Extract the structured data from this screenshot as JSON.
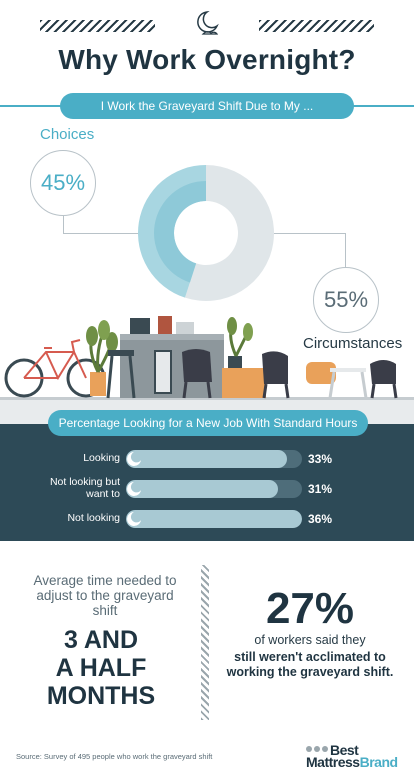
{
  "header": {
    "title": "Why Work Overnight?"
  },
  "reasons": {
    "banner": "I Work the Graveyard Shift Due to My ...",
    "choices_label": "Choices",
    "choices_pct": "45%",
    "circumstances_label": "Circumstances",
    "circumstances_pct": "55%"
  },
  "chart_data": [
    {
      "type": "pie",
      "categories": [
        "Choices",
        "Circumstances"
      ],
      "values": [
        45,
        55
      ],
      "title": "I Work the Graveyard Shift Due to My ..."
    },
    {
      "type": "bar",
      "title": "Percentage Looking for a New Job With Standard Hours",
      "categories": [
        "Looking",
        "Not looking but want to",
        "Not looking"
      ],
      "values": [
        33,
        31,
        36
      ],
      "ylim": [
        0,
        100
      ]
    }
  ],
  "job": {
    "banner": "Percentage Looking for a New Job With Standard Hours",
    "rows": [
      {
        "label": "Looking",
        "value": "33%"
      },
      {
        "label": "Not looking but want to",
        "value": "31%"
      },
      {
        "label": "Not looking",
        "value": "36%"
      }
    ]
  },
  "adjust": {
    "text": "Average time needed to adjust to the graveyard shift",
    "big_line1": "3 AND",
    "big_line2": "A HALF",
    "big_line3": "MONTHS"
  },
  "acclimated": {
    "pct": "27%",
    "line1": "of workers said they",
    "line2": "still weren't acclimated to working the graveyard shift."
  },
  "footer": {
    "source": "Source: Survey of 495 people who work the graveyard shift",
    "logo_best": "Best",
    "logo_mattress": "Mattress",
    "logo_brand": "Brand"
  },
  "colors": {
    "accent": "#4aaec6",
    "dark": "#2d4a57",
    "light": "#a8c9d3"
  }
}
